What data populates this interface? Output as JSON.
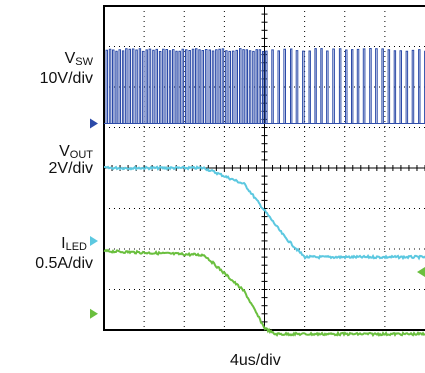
{
  "channels": [
    {
      "id": "vsw",
      "name_main": "V",
      "name_sub": "SW",
      "scale": "10V/div",
      "color": "#2b4aa8"
    },
    {
      "id": "vout",
      "name_main": "V",
      "name_sub": "OUT",
      "scale": "2V/div",
      "color": "#5cc8e0"
    },
    {
      "id": "iled",
      "name_main": "I",
      "name_sub": "LED",
      "scale": "0.5A/div",
      "color": "#6abf3e"
    }
  ],
  "x_scale": "4us/div",
  "grid": {
    "cols": 8,
    "rows": 8
  },
  "chart_data": {
    "type": "line",
    "xlabel": "4us/div",
    "x_unit": "us",
    "x_range": [
      -16,
      16
    ],
    "series": [
      {
        "name": "VSW",
        "scale": "10V/div",
        "waveform": "switching pulses",
        "on_period_end_us": 0
      },
      {
        "name": "VOUT",
        "scale": "2V/div",
        "x": [
          -16,
          -6,
          -2,
          2,
          4,
          16
        ],
        "y_div": [
          0,
          0,
          -0.4,
          -1.7,
          -2.2,
          -2.2
        ]
      },
      {
        "name": "ILED",
        "scale": "0.5A/div",
        "x": [
          -16,
          -6,
          -2,
          0,
          1,
          16
        ],
        "y_div": [
          0,
          -0.1,
          -1.0,
          -1.9,
          -2.05,
          -2.05
        ]
      }
    ]
  }
}
